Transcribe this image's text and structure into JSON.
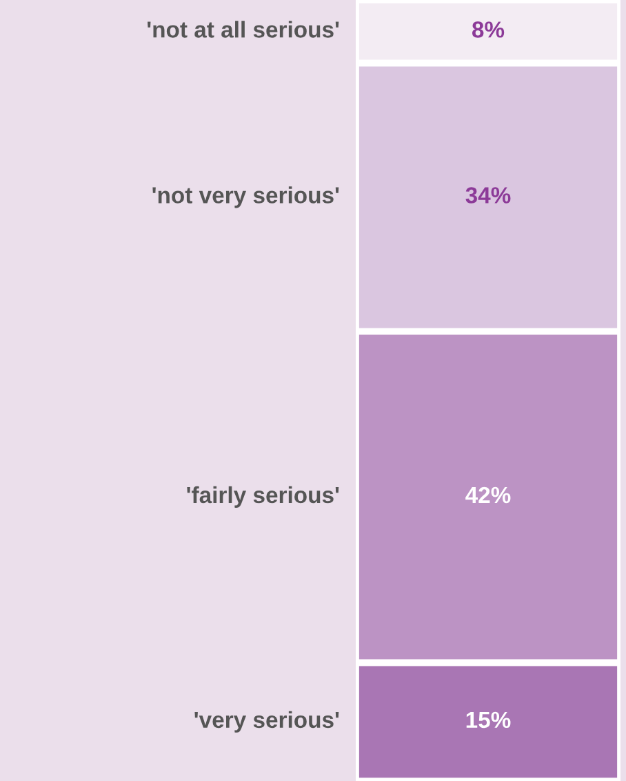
{
  "chart_data": {
    "type": "bar",
    "stacked": true,
    "categories": [
      null
    ],
    "series": [
      {
        "name": "'very serious'",
        "color": "#a976b4",
        "values": [
          15
        ],
        "value_labels": [
          "15%"
        ]
      },
      {
        "name": "'fairly serious'",
        "color": "#bc93c4",
        "values": [
          42
        ],
        "value_labels": [
          "42%"
        ]
      },
      {
        "name": "'not very serious'",
        "color": "#dac6e0",
        "values": [
          34
        ],
        "value_labels": [
          "34%"
        ]
      },
      {
        "name": "'not at all serious'",
        "color": "#f3ecf3",
        "values": [
          8
        ],
        "value_labels": [
          "8%"
        ]
      }
    ],
    "grid": false,
    "legend": false
  }
}
